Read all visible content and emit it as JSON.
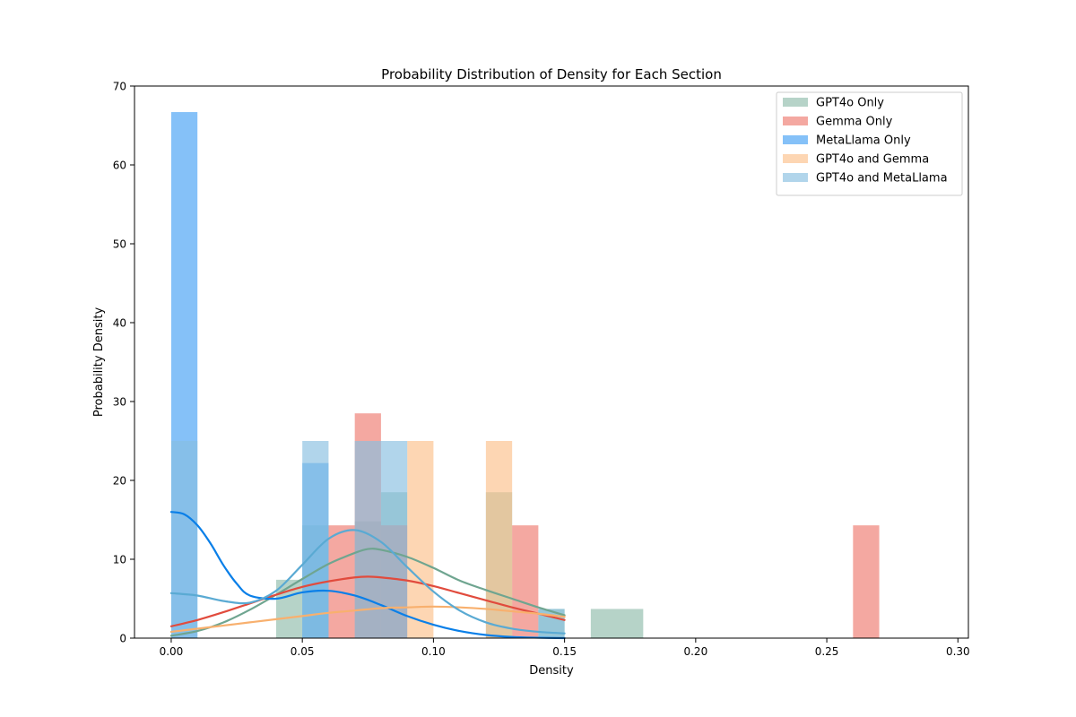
{
  "chart_data": {
    "type": "histogram",
    "title": "Probability Distribution of Density for Each Section",
    "xlabel": "Density",
    "ylabel": "Probability Density",
    "xlim": [
      -0.014,
      0.304
    ],
    "ylim": [
      0,
      70
    ],
    "xticks": [
      0.0,
      0.05,
      0.1,
      0.15,
      0.2,
      0.25,
      0.3
    ],
    "xtick_labels": [
      "0.00",
      "0.05",
      "0.10",
      "0.15",
      "0.20",
      "0.25",
      "0.30"
    ],
    "yticks": [
      0,
      10,
      20,
      30,
      40,
      50,
      60,
      70
    ],
    "ytick_labels": [
      "0",
      "10",
      "20",
      "30",
      "40",
      "50",
      "60",
      "70"
    ],
    "grid": false,
    "legend_position": "top-right",
    "series": [
      {
        "name": "GPT4o Only",
        "color": "#8fbcaa",
        "line_color": "#6fa590",
        "bins": [
          {
            "x0": 0.04,
            "x1": 0.05,
            "y": 7.4
          },
          {
            "x0": 0.05,
            "x1": 0.06,
            "y": 14.3
          },
          {
            "x0": 0.07,
            "x1": 0.08,
            "y": 14.8
          },
          {
            "x0": 0.08,
            "x1": 0.09,
            "y": 18.5
          },
          {
            "x0": 0.12,
            "x1": 0.13,
            "y": 18.5
          },
          {
            "x0": 0.14,
            "x1": 0.15,
            "y": 3.7
          },
          {
            "x0": 0.16,
            "x1": 0.18,
            "y": 3.7
          }
        ],
        "kde": [
          [
            0.0,
            0.3
          ],
          [
            0.01,
            0.9
          ],
          [
            0.02,
            2.0
          ],
          [
            0.03,
            3.6
          ],
          [
            0.04,
            5.5
          ],
          [
            0.05,
            7.5
          ],
          [
            0.06,
            9.4
          ],
          [
            0.07,
            10.8
          ],
          [
            0.075,
            11.3
          ],
          [
            0.08,
            11.2
          ],
          [
            0.09,
            10.3
          ],
          [
            0.1,
            8.9
          ],
          [
            0.11,
            7.3
          ],
          [
            0.12,
            6.1
          ],
          [
            0.13,
            5.0
          ],
          [
            0.14,
            3.9
          ],
          [
            0.15,
            2.9
          ]
        ]
      },
      {
        "name": "Gemma Only",
        "color": "#ee7a6f",
        "line_color": "#e14b3d",
        "bins": [
          {
            "x0": 0.06,
            "x1": 0.07,
            "y": 14.3
          },
          {
            "x0": 0.07,
            "x1": 0.08,
            "y": 28.5
          },
          {
            "x0": 0.08,
            "x1": 0.09,
            "y": 14.3
          },
          {
            "x0": 0.13,
            "x1": 0.14,
            "y": 14.3
          },
          {
            "x0": 0.26,
            "x1": 0.27,
            "y": 14.3
          }
        ],
        "kde": [
          [
            0.0,
            1.5
          ],
          [
            0.01,
            2.3
          ],
          [
            0.02,
            3.3
          ],
          [
            0.03,
            4.4
          ],
          [
            0.04,
            5.5
          ],
          [
            0.05,
            6.5
          ],
          [
            0.06,
            7.2
          ],
          [
            0.07,
            7.7
          ],
          [
            0.075,
            7.8
          ],
          [
            0.08,
            7.7
          ],
          [
            0.09,
            7.3
          ],
          [
            0.1,
            6.6
          ],
          [
            0.11,
            5.7
          ],
          [
            0.12,
            4.8
          ],
          [
            0.13,
            3.9
          ],
          [
            0.14,
            3.1
          ],
          [
            0.15,
            2.3
          ]
        ]
      },
      {
        "name": "MetaLlama Only",
        "color": "#44a0f5",
        "line_color": "#0a7fe8",
        "bins": [
          {
            "x0": 0.0,
            "x1": 0.01,
            "y": 66.7
          },
          {
            "x0": 0.05,
            "x1": 0.06,
            "y": 22.2
          }
        ],
        "kde": [
          [
            0.0,
            16.0
          ],
          [
            0.005,
            15.7
          ],
          [
            0.01,
            14.3
          ],
          [
            0.015,
            12.0
          ],
          [
            0.02,
            9.2
          ],
          [
            0.025,
            6.9
          ],
          [
            0.03,
            5.4
          ],
          [
            0.04,
            5.0
          ],
          [
            0.05,
            5.8
          ],
          [
            0.06,
            6.0
          ],
          [
            0.07,
            5.4
          ],
          [
            0.08,
            4.2
          ],
          [
            0.09,
            2.8
          ],
          [
            0.1,
            1.7
          ],
          [
            0.11,
            0.9
          ],
          [
            0.12,
            0.4
          ],
          [
            0.13,
            0.15
          ],
          [
            0.14,
            0.05
          ],
          [
            0.15,
            0.0
          ]
        ]
      },
      {
        "name": "GPT4o and Gemma",
        "color": "#fcc08a",
        "line_color": "#f8b06e",
        "bins": [
          {
            "x0": 0.09,
            "x1": 0.1,
            "y": 25.0
          },
          {
            "x0": 0.12,
            "x1": 0.13,
            "y": 25.0
          }
        ],
        "kde": [
          [
            0.0,
            0.8
          ],
          [
            0.01,
            1.2
          ],
          [
            0.02,
            1.6
          ],
          [
            0.03,
            2.0
          ],
          [
            0.04,
            2.4
          ],
          [
            0.05,
            2.8
          ],
          [
            0.06,
            3.2
          ],
          [
            0.07,
            3.5
          ],
          [
            0.08,
            3.8
          ],
          [
            0.09,
            3.9
          ],
          [
            0.1,
            4.0
          ],
          [
            0.11,
            3.9
          ],
          [
            0.12,
            3.7
          ],
          [
            0.13,
            3.4
          ],
          [
            0.14,
            3.1
          ],
          [
            0.15,
            2.7
          ]
        ]
      },
      {
        "name": "GPT4o and MetaLlama",
        "color": "#87bfe0",
        "line_color": "#5aaad3",
        "bins": [
          {
            "x0": 0.0,
            "x1": 0.01,
            "y": 25.0
          },
          {
            "x0": 0.05,
            "x1": 0.06,
            "y": 25.0
          },
          {
            "x0": 0.07,
            "x1": 0.08,
            "y": 25.0
          },
          {
            "x0": 0.08,
            "x1": 0.09,
            "y": 25.0
          },
          {
            "x0": 0.14,
            "x1": 0.15,
            "y": 3.7
          }
        ],
        "kde": [
          [
            0.0,
            5.7
          ],
          [
            0.01,
            5.4
          ],
          [
            0.02,
            4.7
          ],
          [
            0.03,
            4.5
          ],
          [
            0.04,
            6.0
          ],
          [
            0.05,
            9.3
          ],
          [
            0.06,
            12.6
          ],
          [
            0.07,
            13.7
          ],
          [
            0.08,
            12.2
          ],
          [
            0.09,
            9.0
          ],
          [
            0.1,
            5.9
          ],
          [
            0.11,
            3.5
          ],
          [
            0.12,
            2.0
          ],
          [
            0.13,
            1.2
          ],
          [
            0.14,
            0.8
          ],
          [
            0.15,
            0.6
          ]
        ]
      }
    ]
  }
}
